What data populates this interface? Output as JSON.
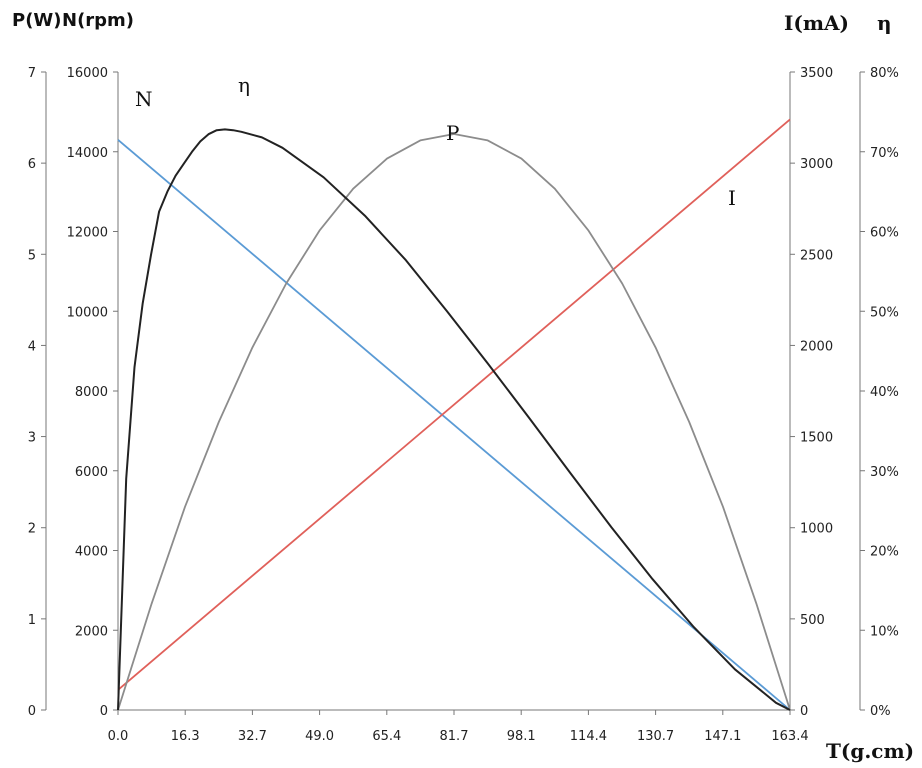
{
  "chart_data": {
    "type": "line",
    "xlabel": "T(g.cm)",
    "x_ticks": [
      "0.0",
      "16.3",
      "32.7",
      "49.0",
      "65.4",
      "81.7",
      "98.1",
      "114.4",
      "130.7",
      "147.1",
      "163.4"
    ],
    "xlim": [
      0,
      163.4
    ],
    "axes": {
      "left_outer": {
        "label": "P(W)",
        "range": [
          0,
          7
        ],
        "ticks": [
          "0",
          "1",
          "2",
          "3",
          "4",
          "5",
          "6",
          "7"
        ]
      },
      "left_inner": {
        "label": "N(rpm)",
        "range": [
          0,
          16000
        ],
        "ticks": [
          "0",
          "2000",
          "4000",
          "6000",
          "8000",
          "10000",
          "12000",
          "14000",
          "16000"
        ]
      },
      "right_inner": {
        "label": "I(mA)",
        "range": [
          0,
          3500
        ],
        "ticks": [
          "0",
          "500",
          "1000",
          "1500",
          "2000",
          "2500",
          "3000",
          "3500"
        ]
      },
      "right_outer": {
        "label": "η",
        "range": [
          0,
          80
        ],
        "ticks": [
          "0%",
          "10%",
          "20%",
          "30%",
          "40%",
          "50%",
          "60%",
          "70%",
          "80%"
        ]
      }
    },
    "series": [
      {
        "name": "N",
        "axis": "left_inner",
        "color": "#5b9bd5",
        "x": [
          0,
          163.4
        ],
        "y": [
          14300,
          0
        ]
      },
      {
        "name": "I",
        "axis": "right_inner",
        "color": "#e0605a",
        "x": [
          0,
          163.4
        ],
        "y": [
          110,
          3240
        ]
      },
      {
        "name": "P",
        "axis": "left_outer",
        "color": "#8c8c8c",
        "x": [
          0,
          8.2,
          16.3,
          24.5,
          32.7,
          40.9,
          49.0,
          57.2,
          65.4,
          73.5,
          81.7,
          89.9,
          98.1,
          106.2,
          114.4,
          122.6,
          130.7,
          138.9,
          147.1,
          155.2,
          163.4
        ],
        "y": [
          0,
          1.17,
          2.23,
          3.16,
          3.98,
          4.68,
          5.26,
          5.72,
          6.05,
          6.25,
          6.32,
          6.25,
          6.05,
          5.72,
          5.26,
          4.68,
          3.98,
          3.16,
          2.23,
          1.17,
          0
        ]
      },
      {
        "name": "η",
        "axis": "right_outer",
        "color": "#222222",
        "x": [
          0,
          2,
          4,
          6,
          8,
          10,
          12,
          14,
          16,
          18,
          20,
          22,
          24,
          26,
          28,
          30,
          35,
          40,
          50,
          60,
          70,
          80,
          90,
          100,
          110,
          120,
          130,
          140,
          150,
          160,
          163.4
        ],
        "y": [
          0,
          29,
          43,
          51,
          57,
          62.5,
          65,
          67,
          68.5,
          70,
          71.3,
          72.2,
          72.7,
          72.8,
          72.7,
          72.5,
          71.8,
          70.5,
          66.8,
          62,
          56.4,
          50,
          43.4,
          36.6,
          29.7,
          22.9,
          16.4,
          10.4,
          5.1,
          0.9,
          0
        ]
      }
    ],
    "labels": {
      "N": "N",
      "eta": "η",
      "P": "P",
      "I": "I"
    },
    "grid": false,
    "legend": "none"
  }
}
